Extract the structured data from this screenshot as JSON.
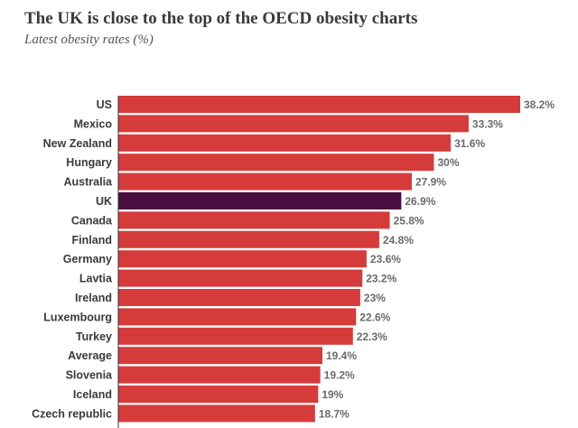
{
  "chart_data": {
    "type": "bar",
    "orientation": "horizontal",
    "title": "The UK is close to the top of the OECD obesity charts",
    "subtitle": "Latest obesity rates (%)",
    "categories": [
      "US",
      "Mexico",
      "New Zealand",
      "Hungary",
      "Australia",
      "UK",
      "Canada",
      "Finland",
      "Germany",
      "Lavtia",
      "Ireland",
      "Luxembourg",
      "Turkey",
      "Average",
      "Slovenia",
      "Iceland",
      "Czech republic"
    ],
    "values": [
      38.2,
      33.3,
      31.6,
      30,
      27.9,
      26.9,
      25.8,
      24.8,
      23.6,
      23.2,
      23,
      22.6,
      22.3,
      19.4,
      19.2,
      19,
      18.7
    ],
    "value_labels": [
      "38.2%",
      "33.3%",
      "31.6%",
      "30%",
      "27.9%",
      "26.9%",
      "25.8%",
      "24.8%",
      "23.6%",
      "23.2%",
      "23%",
      "22.6%",
      "22.3%",
      "19.4%",
      "19.2%",
      "19%",
      "18.7%"
    ],
    "highlight": "UK",
    "xlim": [
      0,
      38.2
    ],
    "xlabel": "",
    "ylabel": ""
  },
  "colors": {
    "bar": "#d63b3b",
    "highlight": "#4a0d40",
    "axis": "#333333"
  }
}
